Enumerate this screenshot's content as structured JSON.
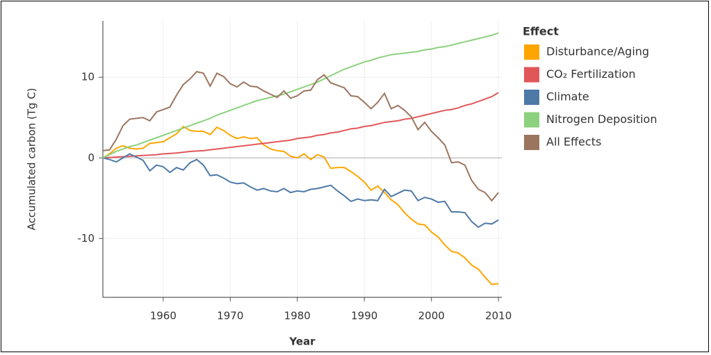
{
  "chart_data": {
    "type": "line",
    "x_label": "Year",
    "y_label": "Accumulated carbon (Tg C)",
    "legend_title": "Effect",
    "x": [
      1951,
      1952,
      1953,
      1954,
      1955,
      1956,
      1957,
      1958,
      1959,
      1960,
      1961,
      1962,
      1963,
      1964,
      1965,
      1966,
      1967,
      1968,
      1969,
      1970,
      1971,
      1972,
      1973,
      1974,
      1975,
      1976,
      1977,
      1978,
      1979,
      1980,
      1981,
      1982,
      1983,
      1984,
      1985,
      1986,
      1987,
      1988,
      1989,
      1990,
      1991,
      1992,
      1993,
      1994,
      1995,
      1996,
      1997,
      1998,
      1999,
      2000,
      2001,
      2002,
      2003,
      2004,
      2005,
      2006,
      2007,
      2008,
      2009,
      2010
    ],
    "xlim": [
      1951,
      2010.5
    ],
    "xticks": [
      1960,
      1970,
      1980,
      1990,
      2000,
      2010
    ],
    "ylim": [
      -17.3,
      17
    ],
    "yticks": [
      -10,
      0,
      10
    ],
    "grid": true,
    "legend": "right",
    "series": [
      {
        "name": "Disturbance/Aging",
        "color": "#ffa500",
        "values": [
          0,
          0.5,
          1.2,
          1.5,
          1.2,
          1.1,
          1.2,
          1.8,
          1.9,
          2.0,
          2.5,
          3.0,
          3.9,
          3.4,
          3.3,
          3.3,
          2.9,
          3.8,
          3.4,
          2.8,
          2.4,
          2.6,
          2.4,
          2.5,
          1.6,
          1.1,
          0.9,
          0.8,
          0.2,
          0.0,
          0.5,
          -0.2,
          0.4,
          0.1,
          -1.3,
          -1.2,
          -1.2,
          -1.7,
          -2.3,
          -3.0,
          -4.0,
          -3.5,
          -4.3,
          -5.2,
          -5.8,
          -6.8,
          -7.6,
          -8.2,
          -8.3,
          -9.2,
          -9.8,
          -10.8,
          -11.6,
          -11.8,
          -12.4,
          -13.3,
          -13.8,
          -14.8,
          -15.7,
          -15.6
        ]
      },
      {
        "name": "CO₂ Fertilization",
        "color": "#e15759",
        "values": [
          0,
          0.05,
          0.1,
          0.15,
          0.2,
          0.25,
          0.3,
          0.35,
          0.4,
          0.5,
          0.55,
          0.6,
          0.7,
          0.8,
          0.85,
          0.9,
          1.0,
          1.1,
          1.2,
          1.3,
          1.4,
          1.5,
          1.6,
          1.7,
          1.8,
          1.9,
          2.0,
          2.1,
          2.2,
          2.4,
          2.5,
          2.6,
          2.8,
          2.9,
          3.1,
          3.2,
          3.4,
          3.6,
          3.7,
          3.9,
          4.0,
          4.2,
          4.4,
          4.5,
          4.6,
          4.8,
          4.9,
          5.1,
          5.3,
          5.5,
          5.7,
          5.9,
          6.0,
          6.2,
          6.5,
          6.7,
          7.0,
          7.3,
          7.6,
          8.1
        ]
      },
      {
        "name": "Climate",
        "color": "#4e79a7",
        "values": [
          0,
          -0.2,
          -0.5,
          0,
          0.5,
          0.1,
          -0.3,
          -1.6,
          -0.9,
          -1.1,
          -1.8,
          -1.2,
          -1.5,
          -0.6,
          -0.2,
          -0.9,
          -2.2,
          -2.1,
          -2.5,
          -3.0,
          -3.2,
          -3.1,
          -3.6,
          -4.0,
          -3.8,
          -4.1,
          -4.2,
          -3.8,
          -4.3,
          -4.1,
          -4.2,
          -3.9,
          -3.8,
          -3.6,
          -3.4,
          -4.1,
          -4.7,
          -5.4,
          -5.1,
          -5.3,
          -5.2,
          -5.3,
          -3.9,
          -4.8,
          -4.4,
          -4.0,
          -4.1,
          -5.3,
          -4.9,
          -5.1,
          -5.5,
          -5.4,
          -6.7,
          -6.7,
          -6.8,
          -7.9,
          -8.6,
          -8.1,
          -8.2,
          -7.7
        ]
      },
      {
        "name": "Nitrogen Deposition",
        "color": "#8cd17d",
        "values": [
          0,
          0.4,
          0.8,
          1.1,
          1.4,
          1.6,
          1.9,
          2.2,
          2.5,
          2.8,
          3.1,
          3.4,
          3.7,
          4.0,
          4.3,
          4.6,
          4.9,
          5.3,
          5.6,
          5.9,
          6.2,
          6.5,
          6.8,
          7.1,
          7.3,
          7.5,
          7.7,
          7.9,
          8.2,
          8.5,
          8.8,
          9.1,
          9.4,
          9.8,
          10.2,
          10.6,
          11.0,
          11.3,
          11.6,
          11.9,
          12.1,
          12.4,
          12.6,
          12.8,
          12.9,
          13.0,
          13.1,
          13.2,
          13.4,
          13.5,
          13.7,
          13.8,
          14.0,
          14.2,
          14.4,
          14.6,
          14.8,
          15.0,
          15.2,
          15.5
        ]
      },
      {
        "name": "All Effects",
        "color": "#9c755f",
        "values": [
          0.9,
          1.0,
          2.3,
          4.0,
          4.8,
          4.9,
          5.0,
          4.6,
          5.7,
          6.0,
          6.3,
          7.8,
          9.1,
          9.8,
          10.7,
          10.5,
          8.9,
          10.5,
          10.1,
          9.2,
          8.8,
          9.4,
          8.9,
          8.8,
          8.3,
          7.9,
          7.5,
          8.3,
          7.4,
          7.7,
          8.3,
          8.4,
          9.7,
          10.3,
          9.3,
          9.0,
          8.7,
          7.7,
          7.6,
          6.9,
          6.1,
          6.9,
          8.0,
          6.1,
          6.5,
          5.9,
          5.1,
          3.5,
          4.4,
          3.3,
          2.5,
          1.6,
          -0.6,
          -0.5,
          -0.9,
          -2.8,
          -3.9,
          -4.3,
          -5.3,
          -4.3
        ]
      }
    ]
  }
}
